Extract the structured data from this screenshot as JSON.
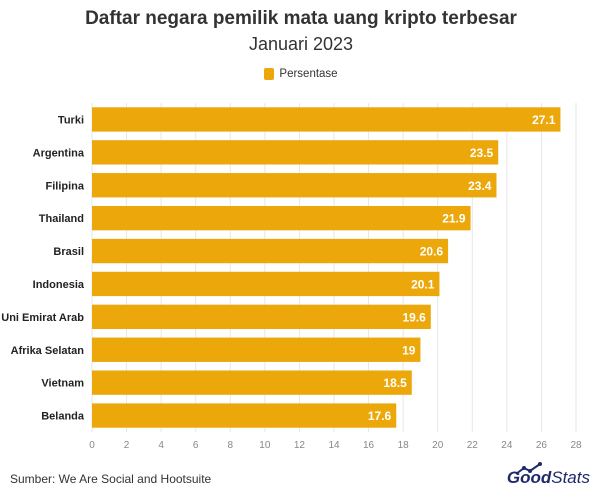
{
  "title": "Daftar negara pemilik mata uang kripto terbesar",
  "subtitle": "Januari 2023",
  "source": "Sumber: We Are Social and Hootsuite",
  "brand": {
    "bold": "Good",
    "light": "Stats"
  },
  "colors": {
    "bar": "#ECA80B",
    "label": "#ffffff",
    "grid": "#e6e6e6",
    "brand": "#1f2a6b"
  },
  "chart_data": {
    "type": "bar",
    "orientation": "horizontal",
    "categories": [
      "Turki",
      "Argentina",
      "Filipina",
      "Thailand",
      "Brasil",
      "Indonesia",
      "Uni Emirat Arab",
      "Afrika Selatan",
      "Vietnam",
      "Belanda"
    ],
    "series": [
      {
        "name": "Persentase",
        "values": [
          27.1,
          23.5,
          23.4,
          21.9,
          20.6,
          20.1,
          19.6,
          19,
          18.5,
          17.6
        ]
      }
    ],
    "value_labels": [
      "27.1",
      "23.5",
      "23.4",
      "21.9",
      "20.6",
      "20.1",
      "19.6",
      "19",
      "18.5",
      "17.6"
    ],
    "xlim": [
      0,
      28
    ],
    "xticks": [
      0,
      2,
      4,
      6,
      8,
      10,
      12,
      14,
      16,
      18,
      20,
      22,
      24,
      26,
      28
    ],
    "grid": true,
    "legend": "top-center"
  }
}
